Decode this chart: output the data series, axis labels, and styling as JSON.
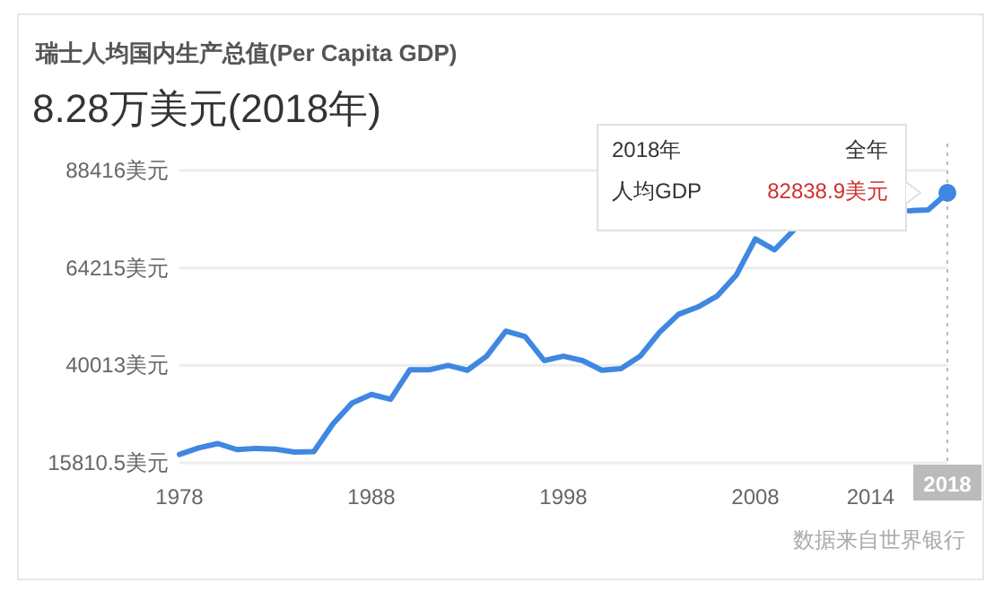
{
  "chart_data": {
    "type": "line",
    "title": "瑞士人均国内生产总值(Per Capita GDP)",
    "subtitle": "8.28万美元(2018年)",
    "x": [
      1978,
      1979,
      1980,
      1981,
      1982,
      1983,
      1984,
      1985,
      1986,
      1987,
      1988,
      1989,
      1990,
      1991,
      1992,
      1993,
      1994,
      1995,
      1996,
      1997,
      1998,
      1999,
      2000,
      2001,
      2002,
      2003,
      2004,
      2005,
      2006,
      2007,
      2008,
      2009,
      2010,
      2011,
      2012,
      2013,
      2014,
      2015,
      2016,
      2017,
      2018
    ],
    "series": [
      {
        "color": "#3f87e0",
        "values": [
          17900,
          19500,
          20600,
          19100,
          19400,
          19200,
          18500,
          18600,
          25500,
          30700,
          32800,
          31600,
          38900,
          38900,
          40000,
          38800,
          42300,
          48500,
          47200,
          41200,
          42300,
          41200,
          38800,
          39200,
          42300,
          48200,
          52700,
          54500,
          57200,
          62400,
          71400,
          68700,
          73600,
          null,
          null,
          null,
          null,
          null,
          78400,
          78600,
          82838.9
        ]
      }
    ],
    "xlim": [
      1978,
      2018
    ],
    "ylim": [
      15810.5,
      88416
    ],
    "xticks": [
      1978,
      1988,
      1998,
      2008,
      2014
    ],
    "yticks": [
      {
        "value": 15810.5,
        "label": "15810.5美元"
      },
      {
        "value": 40013,
        "label": "40013美元"
      },
      {
        "value": 64215,
        "label": "64215美元"
      },
      {
        "value": 88416,
        "label": "88416美元"
      }
    ],
    "grid": "y",
    "ref_lines": [
      {
        "axis": "x",
        "value": 2018,
        "label": "2018",
        "line_style": "dotted",
        "color": "#bbbbbb"
      }
    ],
    "annotations": [
      "2018年",
      "全年",
      "人均GDP",
      {
        "text": "82838.9美元",
        "x": 2018,
        "y": 82838.9
      },
      "数据来自世界银行"
    ]
  }
}
